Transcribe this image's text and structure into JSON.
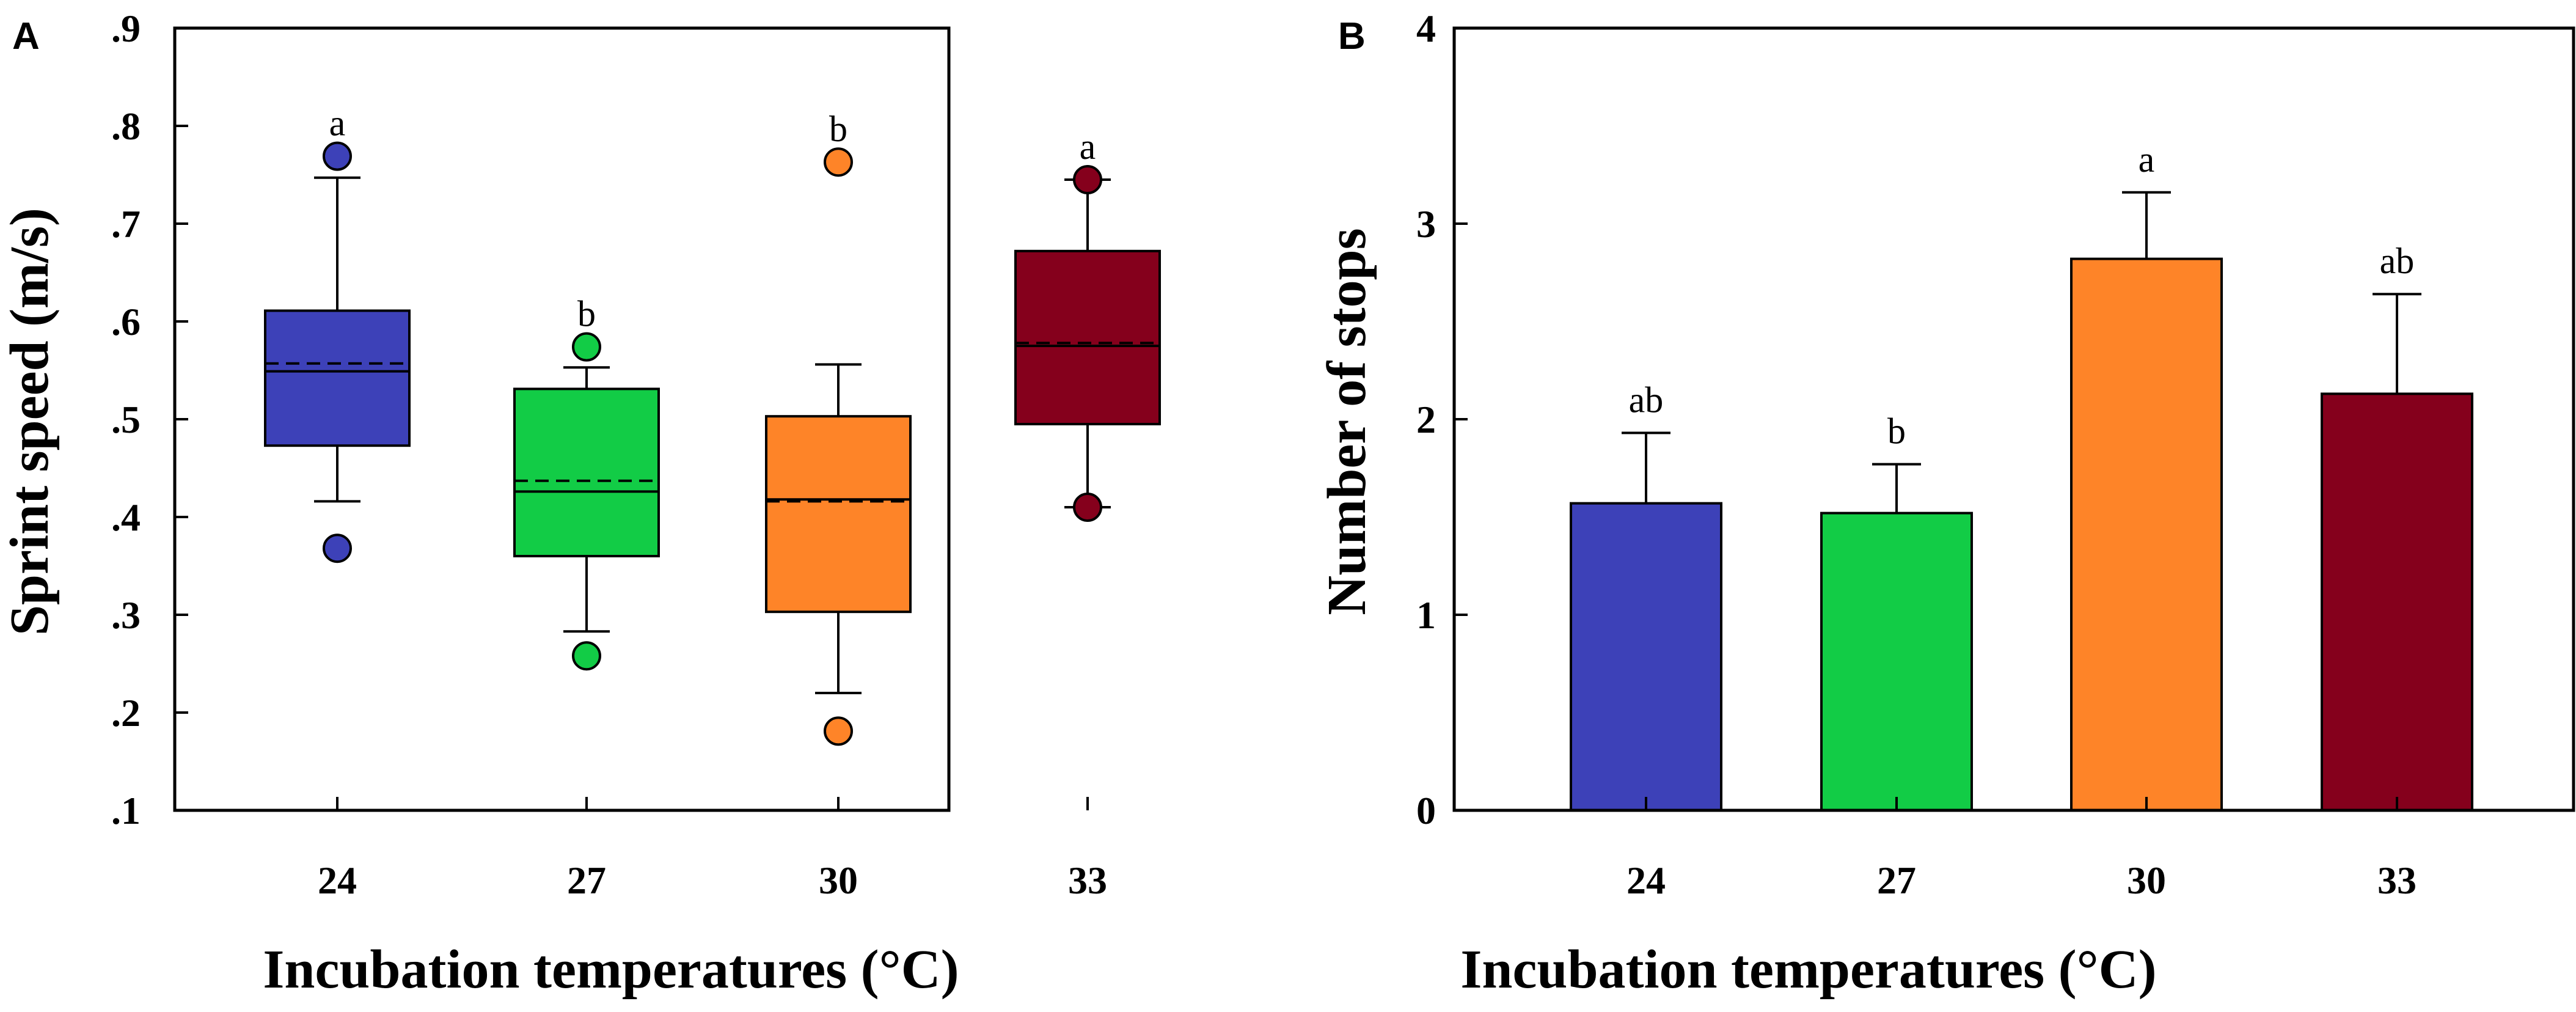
{
  "chart_data": [
    {
      "panel": "A",
      "type": "box",
      "title": "",
      "xlabel": "Incubation temperatures (°C)",
      "ylabel": "Sprint speed (m/s)",
      "ylim": [
        0.1,
        0.9
      ],
      "yticks": [
        {
          "value": 0.1,
          "label": ".1"
        },
        {
          "value": 0.2,
          "label": ".2"
        },
        {
          "value": 0.3,
          "label": ".3"
        },
        {
          "value": 0.4,
          "label": ".4"
        },
        {
          "value": 0.5,
          "label": ".5"
        },
        {
          "value": 0.6,
          "label": ".6"
        },
        {
          "value": 0.7,
          "label": ".7"
        },
        {
          "value": 0.8,
          "label": ".8"
        },
        {
          "value": 0.9,
          "label": ".9"
        }
      ],
      "categories": [
        "24",
        "27",
        "30",
        "33"
      ],
      "boxes": [
        {
          "category": "24",
          "q1": 0.473,
          "median": 0.549,
          "mean": 0.557,
          "q3": 0.611,
          "whisker_low": 0.416,
          "whisker_high": 0.747,
          "outliers": [
            0.769,
            0.368
          ],
          "letter": "a",
          "color": "#3d41b8"
        },
        {
          "category": "27",
          "q1": 0.36,
          "median": 0.426,
          "mean": 0.437,
          "q3": 0.531,
          "whisker_low": 0.283,
          "whisker_high": 0.553,
          "outliers": [
            0.574,
            0.258
          ],
          "letter": "b",
          "color": "#12cc46"
        },
        {
          "category": "30",
          "q1": 0.303,
          "median": 0.418,
          "mean": 0.416,
          "q3": 0.503,
          "whisker_low": 0.22,
          "whisker_high": 0.556,
          "outliers": [
            0.763,
            0.181
          ],
          "letter": "b",
          "color": "#fe8428"
        },
        {
          "category": "33",
          "q1": 0.495,
          "median": 0.575,
          "mean": 0.578,
          "q3": 0.672,
          "whisker_low": 0.41,
          "whisker_high": 0.745,
          "outliers": [
            0.745,
            0.41
          ],
          "letter": "a",
          "color": "#85001c"
        }
      ]
    },
    {
      "panel": "B",
      "type": "bar",
      "title": "",
      "xlabel": "Incubation temperatures (°C)",
      "ylabel": "Number of stops",
      "ylim": [
        0,
        4
      ],
      "yticks": [
        {
          "value": 0,
          "label": "0"
        },
        {
          "value": 1,
          "label": "1"
        },
        {
          "value": 2,
          "label": "2"
        },
        {
          "value": 3,
          "label": "3"
        },
        {
          "value": 4,
          "label": "4"
        }
      ],
      "categories": [
        "24",
        "27",
        "30",
        "33"
      ],
      "values": [
        1.57,
        1.52,
        2.82,
        2.13
      ],
      "errors": [
        0.36,
        0.25,
        0.34,
        0.51
      ],
      "letters": [
        "ab",
        "b",
        "a",
        "ab"
      ],
      "colors": [
        "#3d41b8",
        "#12cc46",
        "#fe8428",
        "#85001c"
      ]
    }
  ]
}
